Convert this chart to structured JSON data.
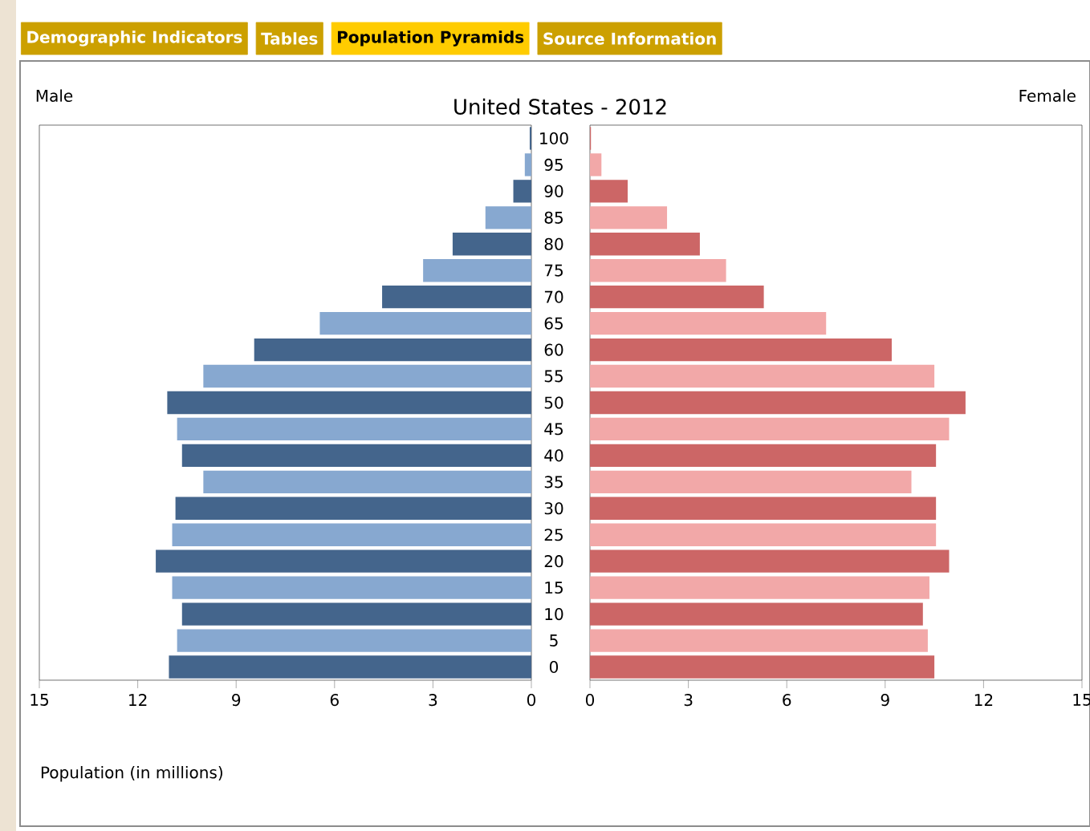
{
  "chart_data": [
    {
      "type": "bar",
      "orientation": "horizontal",
      "title": "Male",
      "subtitle": "United States - 2012",
      "xlabel": "Population (in millions)",
      "annotations": [
        "Demographic Indicators",
        "Tables",
        "Population Pyramids",
        "Source Information"
      ],
      "categories": [
        "100",
        "95",
        "90",
        "85",
        "80",
        "75",
        "70",
        "65",
        "60",
        "55",
        "50",
        "45",
        "40",
        "35",
        "30",
        "25",
        "20",
        "15",
        "10",
        "5",
        "0"
      ],
      "values": [
        0.05,
        0.2,
        0.55,
        1.4,
        2.4,
        3.3,
        4.55,
        6.45,
        8.45,
        10.0,
        11.1,
        10.8,
        10.65,
        10.0,
        10.85,
        10.95,
        11.45,
        10.95,
        10.65,
        10.8,
        11.05
      ],
      "colors": [
        "#44658c",
        "#87a8d0",
        "#44658c",
        "#87a8d0",
        "#44658c",
        "#87a8d0",
        "#44658c",
        "#87a8d0",
        "#44658c",
        "#87a8d0",
        "#44658c",
        "#87a8d0",
        "#44658c",
        "#87a8d0",
        "#44658c",
        "#87a8d0",
        "#44658c",
        "#87a8d0",
        "#44658c",
        "#87a8d0",
        "#44658c"
      ],
      "xlim": [
        15,
        0
      ],
      "xticks": [
        15,
        12,
        9,
        6,
        3,
        0
      ]
    },
    {
      "type": "bar",
      "orientation": "horizontal",
      "title": "Female",
      "tick_labels": "x",
      "categories": [
        "100",
        "95",
        "90",
        "85",
        "80",
        "75",
        "70",
        "65",
        "60",
        "55",
        "50",
        "45",
        "40",
        "35",
        "30",
        "25",
        "20",
        "15",
        "10",
        "5",
        "0"
      ],
      "values": [
        0.03,
        0.35,
        1.15,
        2.35,
        3.35,
        4.15,
        5.3,
        7.2,
        9.2,
        10.5,
        11.45,
        10.95,
        10.55,
        9.8,
        10.55,
        10.55,
        10.95,
        10.35,
        10.15,
        10.3,
        10.5
      ],
      "colors": [
        "#cc6666",
        "#f2a8a8",
        "#cc6666",
        "#f2a8a8",
        "#cc6666",
        "#f2a8a8",
        "#cc6666",
        "#f2a8a8",
        "#cc6666",
        "#f2a8a8",
        "#cc6666",
        "#f2a8a8",
        "#cc6666",
        "#f2a8a8",
        "#cc6666",
        "#f2a8a8",
        "#cc6666",
        "#f2a8a8",
        "#cc6666",
        "#f2a8a8",
        "#cc6666"
      ],
      "xlim": [
        0,
        15
      ],
      "xticks": [
        0,
        3,
        6,
        9,
        12,
        15
      ]
    }
  ]
}
